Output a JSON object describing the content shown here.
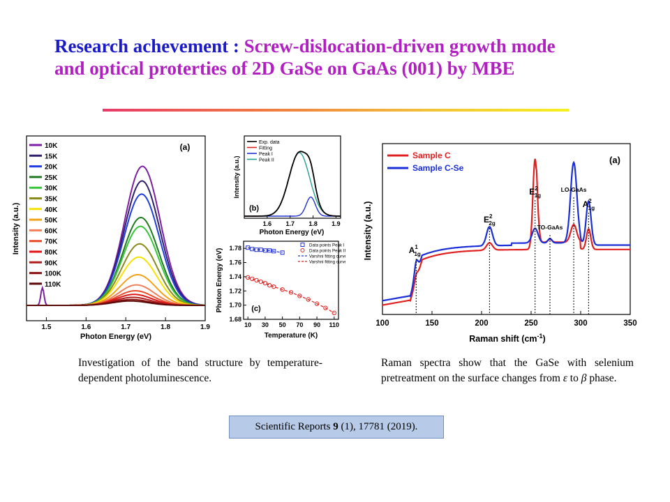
{
  "title": {
    "prefix": "Research achevement :",
    "line1_rest": "Screw-dislocation-driven growth mode",
    "line2": "and optical proterties of 2D GaSe on GaAs (001) by MBE"
  },
  "captions": {
    "left": "Investigation of the band structure by temperature-dependent photoluminescence.",
    "right_pre": "Raman spectra show that the GaSe with selenium pretreatment on the surface changes from ",
    "right_eps": "ε",
    "right_mid": " to ",
    "right_beta": "β",
    "right_post": " phase."
  },
  "reference": {
    "journal": "Scientific Reports",
    "volume": "9",
    "rest": "(1), 17781 (2019)."
  },
  "chart_data": [
    {
      "type": "line",
      "panel_label": "(a)",
      "xlabel": "Photon Energy (eV)",
      "ylabel": "Intensity (a.u.)",
      "xlim": [
        1.45,
        1.9
      ],
      "xticks": [
        "1.5",
        "1.6",
        "1.7",
        "1.8",
        "1.9"
      ],
      "series": [
        {
          "name": "10K",
          "color": "#7b1fa2",
          "peak_x": 1.742,
          "peak_rel": 0.95
        },
        {
          "name": "15K",
          "color": "#2e1e6b",
          "peak_x": 1.741,
          "peak_rel": 0.85
        },
        {
          "name": "20K",
          "color": "#1f3ce0",
          "peak_x": 1.74,
          "peak_rel": 0.76
        },
        {
          "name": "25K",
          "color": "#1f7a1f",
          "peak_x": 1.738,
          "peak_rel": 0.6
        },
        {
          "name": "30K",
          "color": "#39c439",
          "peak_x": 1.737,
          "peak_rel": 0.54
        },
        {
          "name": "35K",
          "color": "#8a8a1a",
          "peak_x": 1.735,
          "peak_rel": 0.42
        },
        {
          "name": "40K",
          "color": "#f5e200",
          "peak_x": 1.733,
          "peak_rel": 0.33
        },
        {
          "name": "50K",
          "color": "#f2a21a",
          "peak_x": 1.73,
          "peak_rel": 0.21
        },
        {
          "name": "60K",
          "color": "#f07f5a",
          "peak_x": 1.727,
          "peak_rel": 0.14
        },
        {
          "name": "70K",
          "color": "#e84c2a",
          "peak_x": 1.724,
          "peak_rel": 0.1
        },
        {
          "name": "80K",
          "color": "#e01414",
          "peak_x": 1.721,
          "peak_rel": 0.075
        },
        {
          "name": "90K",
          "color": "#b01c1c",
          "peak_x": 1.718,
          "peak_rel": 0.055
        },
        {
          "name": "100K",
          "color": "#8a1010",
          "peak_x": 1.715,
          "peak_rel": 0.04
        },
        {
          "name": "110K",
          "color": "#5a0808",
          "peak_x": 1.712,
          "peak_rel": 0.03
        }
      ],
      "side_peak": {
        "x": 1.49,
        "rel": 0.12
      }
    },
    {
      "type": "line",
      "panel_label": "(b)",
      "xlabel": "Photon Energy (eV)",
      "ylabel": "Intensity (a.u.)",
      "xlim": [
        1.5,
        1.92
      ],
      "xticks": [
        "1.6",
        "1.7",
        "1.8",
        "1.9"
      ],
      "series": [
        {
          "name": "Exp. data",
          "color": "#000000"
        },
        {
          "name": "Fitting",
          "color": "#e02020"
        },
        {
          "name": "Peak I",
          "color": "#2030d0"
        },
        {
          "name": "Peak II",
          "color": "#20a090"
        }
      ],
      "peaks": {
        "I": {
          "x": 1.79,
          "rel": 0.28
        },
        "II": {
          "x": 1.74,
          "rel": 0.93
        }
      }
    },
    {
      "type": "scatter",
      "panel_label": "(c)",
      "xlabel": "Temperature (K)",
      "ylabel": "Photon Energy (eV)",
      "xlim": [
        5,
        115
      ],
      "ylim": [
        1.68,
        1.79
      ],
      "xticks": [
        "10",
        "30",
        "50",
        "70",
        "90",
        "110"
      ],
      "yticks": [
        "1.68",
        "1.70",
        "1.72",
        "1.74",
        "1.76",
        "1.78"
      ],
      "series": [
        {
          "name": "Data points Peak I",
          "color": "#2030d0",
          "x": [
            10,
            15,
            20,
            25,
            30,
            35,
            40,
            50
          ],
          "y": [
            1.781,
            1.779,
            1.778,
            1.778,
            1.777,
            1.777,
            1.776,
            1.774
          ]
        },
        {
          "name": "Data points Peak II",
          "color": "#e02020",
          "x": [
            10,
            15,
            20,
            25,
            30,
            35,
            40,
            50,
            60,
            70,
            80,
            90,
            100,
            110
          ],
          "y": [
            1.739,
            1.737,
            1.735,
            1.733,
            1.731,
            1.728,
            1.726,
            1.722,
            1.718,
            1.713,
            1.708,
            1.702,
            1.696,
            1.689
          ]
        },
        {
          "name": "Varshni fitting curve",
          "color": "#2030d0",
          "style": "dashed"
        },
        {
          "name": "Varshni fitting curve",
          "color": "#e02020",
          "style": "dashed"
        }
      ]
    },
    {
      "type": "line",
      "panel_label": "(a)",
      "xlabel": "Raman shift (cm",
      "xlabel_sup": "-1",
      "xlabel_end": ")",
      "ylabel": "Intensity (a.u.)",
      "xlim": [
        100,
        350
      ],
      "xticks": [
        "100",
        "150",
        "200",
        "250",
        "300",
        "350"
      ],
      "series": [
        {
          "name": "Sample C",
          "color": "#e02020"
        },
        {
          "name": "Sample C-Se",
          "color": "#1a2ed8"
        }
      ],
      "annotations": [
        {
          "base": "A",
          "sup": "1",
          "sub": "1g",
          "x": 134
        },
        {
          "base": "E",
          "sup": "2",
          "sub": "2g",
          "x": 208
        },
        {
          "base": "E",
          "sup": "2",
          "sub": "1g",
          "x": 254
        },
        {
          "base": "TO-GaAs",
          "sup": "",
          "sub": "",
          "x": 269
        },
        {
          "base": "LO-GaAs",
          "sup": "",
          "sub": "",
          "x": 293
        },
        {
          "base": "A",
          "sup": "2",
          "sub": "1g",
          "x": 308
        }
      ]
    }
  ]
}
